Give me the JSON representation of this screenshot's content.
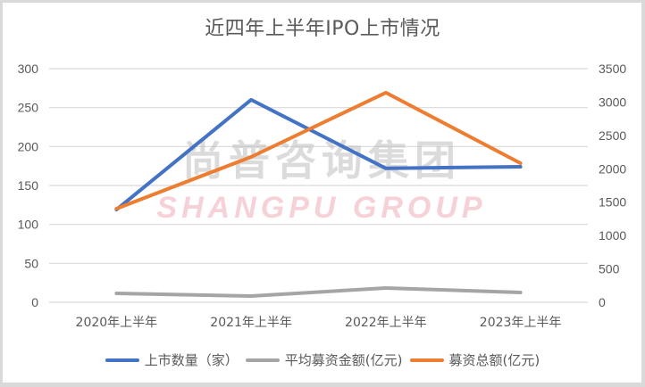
{
  "chart_data": {
    "type": "line",
    "title": "近四年上半年IPO上市情况",
    "categories": [
      "2020年上半年",
      "2021年上半年",
      "2022年上半年",
      "2023年上半年"
    ],
    "series": [
      {
        "name": "上市数量（家）",
        "axis": "left",
        "color": "#4472c4",
        "values": [
          119,
          260,
          172,
          174
        ]
      },
      {
        "name": "平均募资金额(亿元)",
        "axis": "right",
        "color": "#a5a5a5",
        "values": [
          134,
          94,
          214,
          147
        ]
      },
      {
        "name": "募资总额(亿元)",
        "axis": "right",
        "color": "#ed7d31",
        "values": [
          1403,
          2178,
          3140,
          2084
        ]
      }
    ],
    "left_axis": {
      "ticks": [
        0,
        50,
        100,
        150,
        200,
        250,
        300
      ],
      "ylim": [
        0,
        300
      ]
    },
    "right_axis": {
      "ticks": [
        0,
        500,
        1000,
        1500,
        2000,
        2500,
        3000,
        3500
      ],
      "ylim": [
        0,
        3500
      ]
    },
    "xlabel": "",
    "ylabel": "",
    "grid": true,
    "legend_position": "bottom"
  },
  "title": "近四年上半年IPO上市情况",
  "left_ticks": [
    "300",
    "250",
    "200",
    "150",
    "100",
    "50",
    "0"
  ],
  "right_ticks": [
    "3500",
    "3000",
    "2500",
    "2000",
    "1500",
    "1000",
    "500",
    "0"
  ],
  "x_labels": [
    "2020年上半年",
    "2021年上半年",
    "2022年上半年",
    "2023年上半年"
  ],
  "legend": [
    {
      "label": "上市数量（家）",
      "color": "#4472c4"
    },
    {
      "label": "平均募资金额(亿元)",
      "color": "#a5a5a5"
    },
    {
      "label": "募资总额(亿元)",
      "color": "#ed7d31"
    }
  ],
  "watermark": {
    "cn": "尚普咨询集团",
    "en": "SHANGPU GROUP"
  }
}
